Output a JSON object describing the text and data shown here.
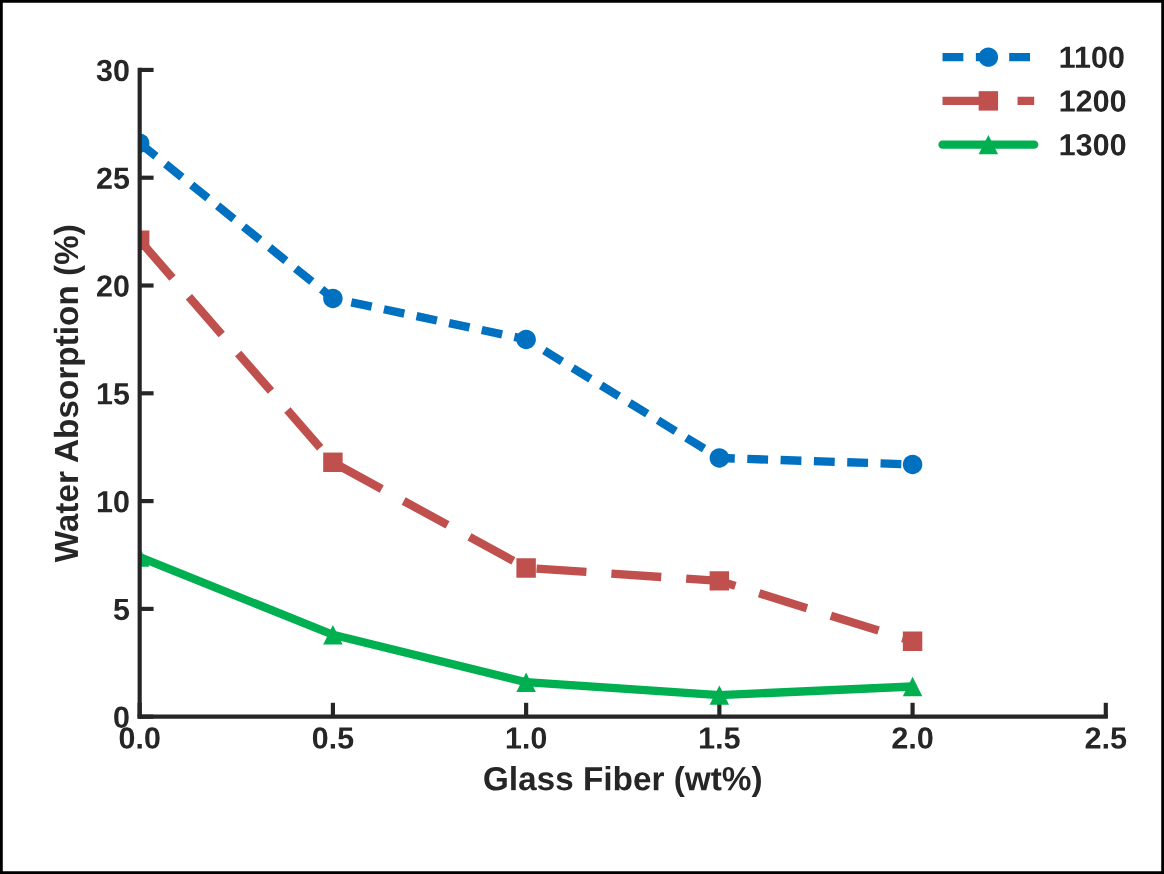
{
  "chart_data": {
    "type": "line",
    "xlabel": "Glass Fiber (wt%)",
    "ylabel": "Water Absorption (%)",
    "x": [
      0.0,
      0.5,
      1.0,
      1.5,
      2.0
    ],
    "series": [
      {
        "name": "1100",
        "color": "#0070c0",
        "marker": "circle",
        "line_style": "dotted",
        "values": [
          26.6,
          19.4,
          17.5,
          12.0,
          11.7
        ]
      },
      {
        "name": "1200",
        "color": "#c0504d",
        "marker": "square",
        "line_style": "dashed",
        "values": [
          22.1,
          11.8,
          6.9,
          6.3,
          3.5
        ]
      },
      {
        "name": "1300",
        "color": "#00b050",
        "marker": "triangle",
        "line_style": "solid",
        "values": [
          7.4,
          3.8,
          1.6,
          1.0,
          1.4
        ]
      }
    ],
    "xlim": [
      0,
      2.5
    ],
    "xticks": [
      {
        "value": 0,
        "label": "0.0"
      },
      {
        "value": 0.5,
        "label": "0.5"
      },
      {
        "value": 1.0,
        "label": "1.0"
      },
      {
        "value": 1.5,
        "label": "1.5"
      },
      {
        "value": 2.0,
        "label": "2.0"
      },
      {
        "value": 2.5,
        "label": "2.5"
      }
    ],
    "ylim": [
      0,
      30
    ],
    "yticks": [
      0,
      5,
      10,
      15,
      20,
      25,
      30
    ],
    "grid": false,
    "legend": "top right"
  }
}
